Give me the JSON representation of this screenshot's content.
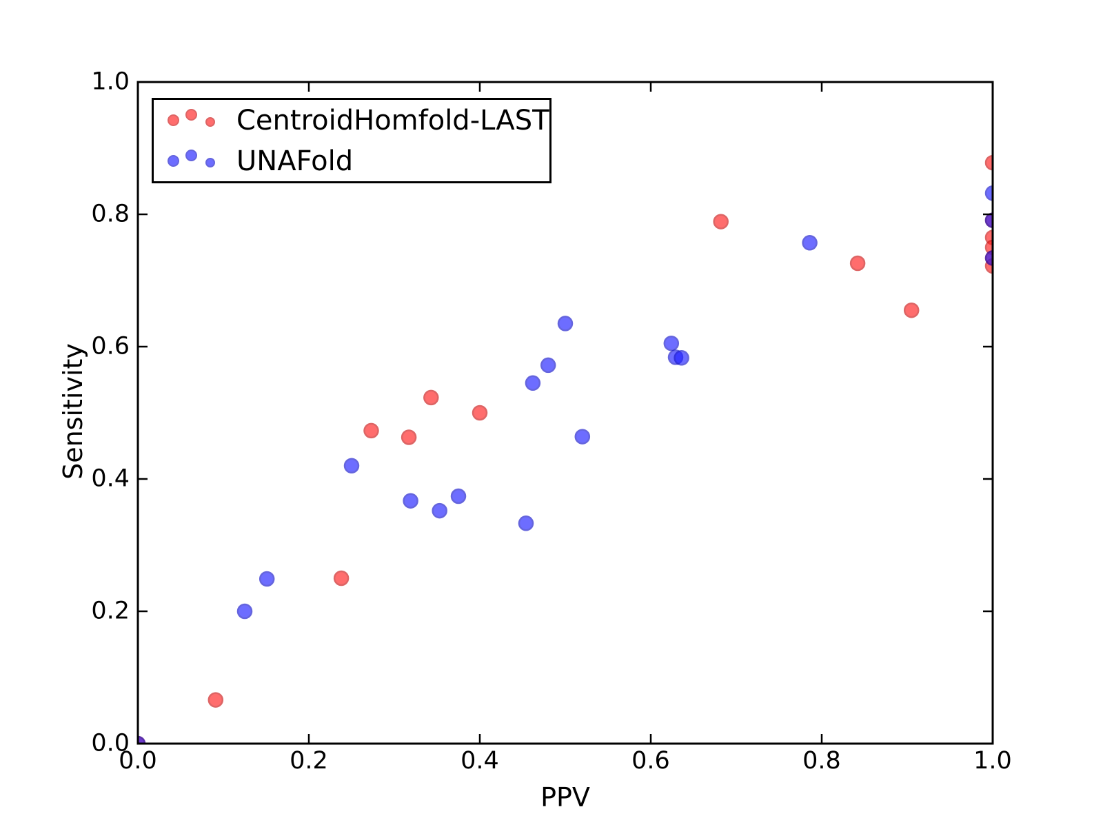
{
  "figure": {
    "background": "#ffffff",
    "axes_color": "#000000"
  },
  "chart_data": {
    "type": "scatter",
    "title": "",
    "xlabel": "PPV",
    "ylabel": "Sensitivity",
    "xlim": [
      0.0,
      1.0
    ],
    "ylim": [
      0.0,
      1.0
    ],
    "grid": false,
    "x_ticks": [
      0.0,
      0.2,
      0.4,
      0.6,
      0.8,
      1.0
    ],
    "x_tick_labels": [
      "0.0",
      "0.2",
      "0.4",
      "0.6",
      "0.8",
      "1.0"
    ],
    "y_ticks": [
      0.0,
      0.2,
      0.4,
      0.6,
      0.8,
      1.0
    ],
    "y_tick_labels": [
      "0.0",
      "0.2",
      "0.4",
      "0.6",
      "0.8",
      "1.0"
    ],
    "legend": {
      "position": "upper left",
      "entries": [
        "CentroidHomfold-LAST",
        "UNAFold"
      ]
    },
    "series": [
      {
        "name": "CentroidHomfold-LAST",
        "marker": "circle",
        "fill": "#ff2020",
        "edge": "#cc1414",
        "opacity": 0.65,
        "points": [
          [
            0.0,
            0.0
          ],
          [
            0.091,
            0.066
          ],
          [
            0.238,
            0.25
          ],
          [
            0.273,
            0.473
          ],
          [
            0.317,
            0.463
          ],
          [
            0.343,
            0.523
          ],
          [
            0.4,
            0.5
          ],
          [
            0.682,
            0.789
          ],
          [
            0.842,
            0.726
          ],
          [
            0.905,
            0.655
          ],
          [
            1.0,
            0.878
          ],
          [
            1.0,
            0.791
          ],
          [
            1.0,
            0.765
          ],
          [
            1.0,
            0.75
          ],
          [
            1.0,
            0.734
          ],
          [
            1.0,
            0.722
          ]
        ]
      },
      {
        "name": "UNAFold",
        "marker": "circle",
        "fill": "#2020ff",
        "edge": "#1414cc",
        "opacity": 0.65,
        "points": [
          [
            0.0,
            0.0
          ],
          [
            0.125,
            0.2
          ],
          [
            0.151,
            0.249
          ],
          [
            0.25,
            0.42
          ],
          [
            0.319,
            0.367
          ],
          [
            0.353,
            0.352
          ],
          [
            0.375,
            0.374
          ],
          [
            0.454,
            0.333
          ],
          [
            0.462,
            0.545
          ],
          [
            0.48,
            0.572
          ],
          [
            0.5,
            0.635
          ],
          [
            0.52,
            0.464
          ],
          [
            0.624,
            0.605
          ],
          [
            0.629,
            0.584
          ],
          [
            0.636,
            0.583
          ],
          [
            0.786,
            0.757
          ],
          [
            1.0,
            0.832
          ],
          [
            1.0,
            0.791
          ],
          [
            1.0,
            0.734
          ]
        ]
      }
    ]
  }
}
